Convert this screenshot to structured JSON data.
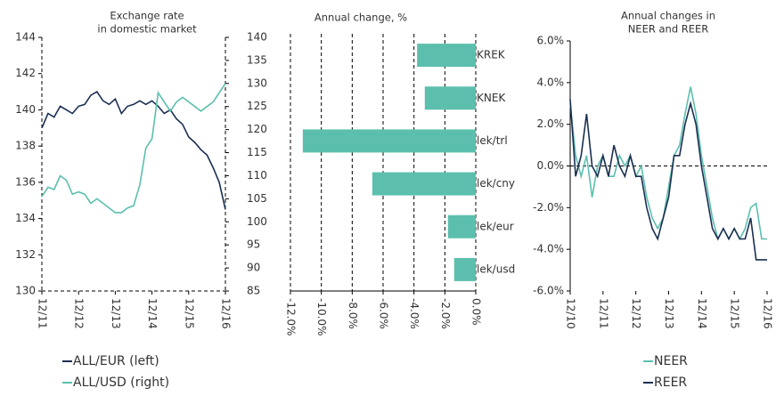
{
  "chart_data": [
    {
      "type": "line",
      "title": [
        "Exchange rate",
        "in domestic market"
      ],
      "x": [
        "12/11",
        "02/12",
        "04/12",
        "06/12",
        "08/12",
        "10/12",
        "12/12",
        "02/13",
        "04/13",
        "06/13",
        "08/13",
        "10/13",
        "12/13",
        "02/14",
        "04/14",
        "06/14",
        "08/14",
        "10/14",
        "12/14",
        "02/15",
        "04/15",
        "06/15",
        "08/15",
        "10/15",
        "12/15",
        "02/16",
        "04/16",
        "06/16",
        "08/16",
        "10/16",
        "12/16"
      ],
      "xticks": [
        "12/11",
        "12/12",
        "12/13",
        "12/14",
        "12/15",
        "12/16"
      ],
      "ylim": [
        130,
        144
      ],
      "yticks": [
        130,
        132,
        134,
        136,
        138,
        140,
        142,
        144
      ],
      "y2lim": [
        85,
        140
      ],
      "y2ticks": [
        85,
        90,
        95,
        100,
        105,
        110,
        115,
        120,
        125,
        130,
        135,
        140
      ],
      "series": [
        {
          "name": "ALL/EUR (left)",
          "color": "#1b2f52",
          "values": [
            139.0,
            139.8,
            139.6,
            140.2,
            140.0,
            139.8,
            140.2,
            140.3,
            140.8,
            141.0,
            140.5,
            140.3,
            140.6,
            139.8,
            140.2,
            140.3,
            140.5,
            140.3,
            140.5,
            140.2,
            139.8,
            140.0,
            139.5,
            139.2,
            138.5,
            138.2,
            137.8,
            137.5,
            136.8,
            136.0,
            134.5
          ]
        },
        {
          "name": "ALL/USD (right)",
          "color": "#5cbfae",
          "axis": "y2",
          "values": [
            105.5,
            107.5,
            107,
            110,
            109,
            106,
            106.5,
            106,
            104,
            105,
            104,
            103,
            102,
            102,
            103,
            103.5,
            108,
            116,
            118,
            128,
            126,
            124,
            126,
            127,
            126,
            125,
            124,
            125,
            126,
            128,
            130
          ]
        }
      ]
    },
    {
      "type": "hbar",
      "title": [
        "Annual change, %"
      ],
      "categories": [
        "KREK",
        "KNEK",
        "lek/trl",
        "lek/cny",
        "lek/eur",
        "lek/usd"
      ],
      "values": [
        -3.8,
        -3.3,
        -11.2,
        -6.7,
        -1.8,
        -1.4
      ],
      "color": "#5cbfae",
      "xlim": [
        -12,
        0
      ],
      "xticks": [
        {
          "value": -12,
          "label": "-12.0%"
        },
        {
          "value": -10,
          "label": "-10.0%"
        },
        {
          "value": -8,
          "label": "-8.0%"
        },
        {
          "value": -6,
          "label": "-6.0%"
        },
        {
          "value": -4,
          "label": "-4.0%"
        },
        {
          "value": -2,
          "label": "-2.0%"
        },
        {
          "value": 0,
          "label": "0.0%"
        }
      ],
      "grid": true
    },
    {
      "type": "line",
      "title": [
        "Annual changes in",
        "NEER and REER"
      ],
      "x": [
        "12/10",
        "02/11",
        "04/11",
        "06/11",
        "08/11",
        "10/11",
        "12/11",
        "02/12",
        "04/12",
        "06/12",
        "08/12",
        "10/12",
        "12/12",
        "02/13",
        "04/13",
        "06/13",
        "08/13",
        "10/13",
        "12/13",
        "02/14",
        "04/14",
        "06/14",
        "08/14",
        "10/14",
        "12/14",
        "02/15",
        "04/15",
        "06/15",
        "08/15",
        "10/15",
        "12/15",
        "02/16",
        "04/16",
        "06/16",
        "08/16",
        "10/16",
        "12/16"
      ],
      "xticks": [
        "12/10",
        "12/11",
        "12/12",
        "12/13",
        "12/14",
        "12/15",
        "12/16"
      ],
      "ylim": [
        -6,
        6
      ],
      "yticks": [
        {
          "value": -6,
          "label": "-6.0%"
        },
        {
          "value": -4,
          "label": "-4.0%"
        },
        {
          "value": -2,
          "label": "-2.0%"
        },
        {
          "value": 0,
          "label": "0.0%"
        },
        {
          "value": 2,
          "label": "2.0%"
        },
        {
          "value": 4,
          "label": "4.0%"
        },
        {
          "value": 6,
          "label": "6.0%"
        }
      ],
      "series": [
        {
          "name": "NEER",
          "color": "#5cbfae",
          "values": [
            3.0,
            0.5,
            -0.5,
            0.5,
            -1.5,
            0.0,
            0.5,
            -0.5,
            -0.5,
            0.5,
            0.0,
            0.5,
            -0.5,
            0.0,
            -1.5,
            -2.5,
            -3.0,
            -2.5,
            -1.0,
            0.5,
            1.0,
            2.5,
            3.8,
            2.5,
            0.5,
            -1.0,
            -2.5,
            -3.5,
            -3.0,
            -3.5,
            -3.0,
            -3.5,
            -3.0,
            -2.0,
            -1.8,
            -3.5,
            -3.5
          ]
        },
        {
          "name": "REER",
          "color": "#1b2f52",
          "values": [
            3.2,
            -0.5,
            0.5,
            2.5,
            0.0,
            -0.5,
            0.5,
            -0.5,
            1.0,
            0.0,
            -0.5,
            0.5,
            -0.5,
            -0.5,
            -2.0,
            -3.0,
            -3.5,
            -2.5,
            -1.5,
            0.5,
            0.5,
            2.0,
            3.0,
            2.0,
            0.0,
            -1.5,
            -3.0,
            -3.5,
            -3.0,
            -3.5,
            -3.0,
            -3.5,
            -3.5,
            -2.5,
            -4.5,
            -4.5,
            -4.5
          ]
        }
      ]
    }
  ]
}
